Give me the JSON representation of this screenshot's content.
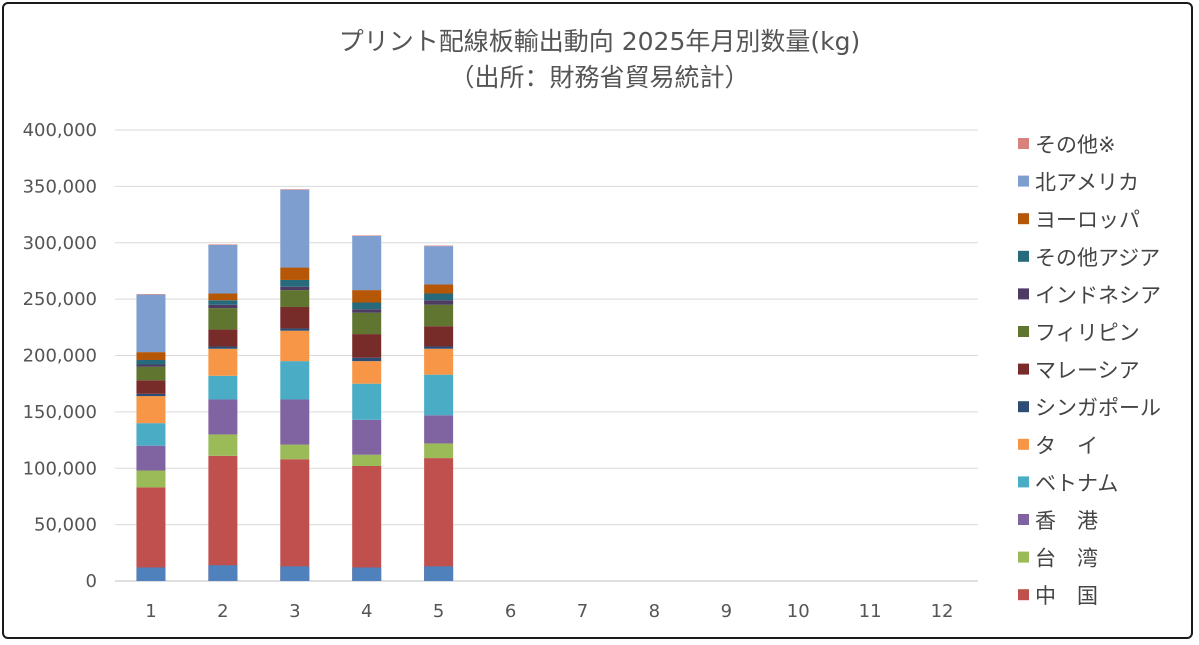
{
  "chart_data": {
    "type": "bar",
    "stacked": true,
    "title": "プリント配線板輸出動向 2025年月別数量(kg)",
    "subtitle": "（出所：財務省貿易統計）",
    "xlabel": "",
    "ylabel": "",
    "ylim": [
      0,
      400000
    ],
    "ytick_labels": [
      "0",
      "50,000",
      "100,000",
      "150,000",
      "200,000",
      "250,000",
      "300,000",
      "350,000",
      "400,000"
    ],
    "ytick_values": [
      0,
      50000,
      100000,
      150000,
      200000,
      250000,
      300000,
      350000,
      400000
    ],
    "grid": true,
    "legend_position": "right",
    "categories": [
      "1",
      "2",
      "3",
      "4",
      "5",
      "6",
      "7",
      "8",
      "9",
      "10",
      "11",
      "12"
    ],
    "series": [
      {
        "name": "中　国",
        "color": "#C0504D",
        "values": [
          83000,
          111000,
          108000,
          102000,
          109000,
          null,
          null,
          null,
          null,
          null,
          null,
          null
        ]
      },
      {
        "name": "台　湾",
        "color": "#9BBB59",
        "values": [
          15000,
          19000,
          13000,
          10000,
          13000,
          null,
          null,
          null,
          null,
          null,
          null,
          null
        ]
      },
      {
        "name": "香　港",
        "color": "#8064A2",
        "values": [
          22000,
          31000,
          40000,
          31000,
          25000,
          null,
          null,
          null,
          null,
          null,
          null,
          null
        ]
      },
      {
        "name": "ベトナム",
        "color": "#4BACC6",
        "values": [
          20000,
          21000,
          34000,
          32000,
          36000,
          null,
          null,
          null,
          null,
          null,
          null,
          null
        ]
      },
      {
        "name": "タ　イ",
        "color": "#F79646",
        "values": [
          24000,
          24000,
          27000,
          20000,
          23000,
          null,
          null,
          null,
          null,
          null,
          null,
          null
        ]
      },
      {
        "name": "シンガポール",
        "color": "#2C4D75",
        "values": [
          2000,
          2000,
          2000,
          3000,
          2000,
          null,
          null,
          null,
          null,
          null,
          null,
          null
        ]
      },
      {
        "name": "マレーシア",
        "color": "#772C2A",
        "values": [
          12000,
          15000,
          19000,
          21000,
          18000,
          null,
          null,
          null,
          null,
          null,
          null,
          null
        ]
      },
      {
        "name": "フィリピン",
        "color": "#5F7530",
        "values": [
          12000,
          19000,
          15000,
          19000,
          19000,
          null,
          null,
          null,
          null,
          null,
          null,
          null
        ]
      },
      {
        "name": "インドネシア",
        "color": "#4D3B62",
        "values": [
          2000,
          3000,
          3000,
          3000,
          4000,
          null,
          null,
          null,
          null,
          null,
          null,
          null
        ]
      },
      {
        "name": "その他アジア",
        "color": "#276A7C",
        "values": [
          4000,
          4000,
          6000,
          6000,
          6000,
          null,
          null,
          null,
          null,
          null,
          null,
          null
        ]
      },
      {
        "name": "ヨーロッパ",
        "color": "#B65708",
        "values": [
          7000,
          6000,
          11000,
          11000,
          8000,
          null,
          null,
          null,
          null,
          null,
          null,
          null
        ]
      },
      {
        "name": "北アメリカ",
        "color": "#7E9ECF",
        "values": [
          51000,
          43000,
          69000,
          48000,
          34000,
          null,
          null,
          null,
          null,
          null,
          null,
          null
        ]
      },
      {
        "name": "その他※",
        "color": "#D9817D",
        "values": [
          500,
          500,
          500,
          500,
          500,
          null,
          null,
          null,
          null,
          null,
          null,
          null
        ]
      }
    ],
    "bottom_band": {
      "color": "#4F81BD",
      "values": [
        12000,
        14000,
        13000,
        12000,
        13000,
        null,
        null,
        null,
        null,
        null,
        null,
        null
      ]
    }
  }
}
